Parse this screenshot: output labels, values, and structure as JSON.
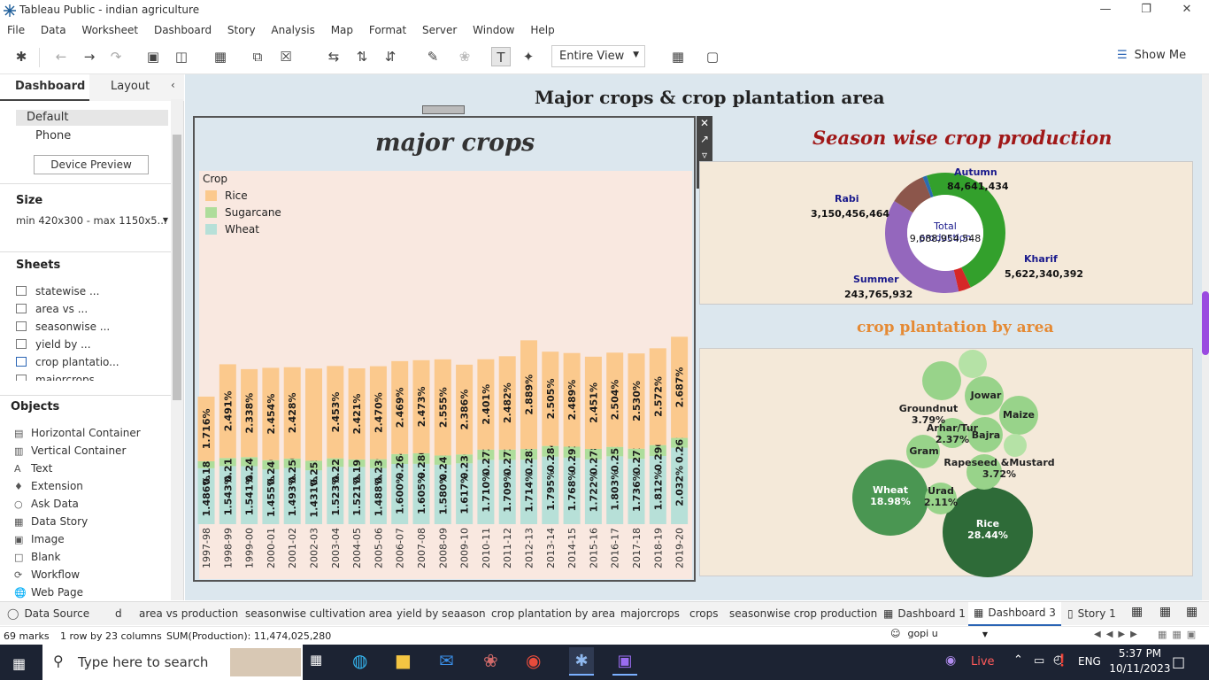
{
  "app": {
    "title": "Tableau Public - indian agriculture",
    "menu": [
      "File",
      "Data",
      "Worksheet",
      "Dashboard",
      "Story",
      "Analysis",
      "Map",
      "Format",
      "Server",
      "Window",
      "Help"
    ],
    "view_mode": "Entire View",
    "show_me": "Show Me"
  },
  "left_panel": {
    "tabs": [
      "Dashboard",
      "Layout"
    ],
    "devices": [
      "Default",
      "Phone"
    ],
    "device_preview": "Device Preview",
    "size_label": "Size",
    "size_value": "min 420x300 - max 1150x5...",
    "sheets_label": "Sheets",
    "sheets": [
      "statewise ...",
      "area vs ...",
      "seasonwise ...",
      "yield by ...",
      "crop plantatio...",
      "majorcrops"
    ],
    "objects_label": "Objects",
    "objects": [
      {
        "icon": "horizontal-container-icon",
        "label": "Horizontal Container"
      },
      {
        "icon": "vertical-container-icon",
        "label": "Vertical Container"
      },
      {
        "icon": "text-icon",
        "label": "Text"
      },
      {
        "icon": "extension-icon",
        "label": "Extension"
      },
      {
        "icon": "ask-data-icon",
        "label": "Ask Data"
      },
      {
        "icon": "data-story-icon",
        "label": "Data Story"
      },
      {
        "icon": "image-icon",
        "label": "Image"
      },
      {
        "icon": "blank-icon",
        "label": "Blank"
      },
      {
        "icon": "workflow-icon",
        "label": "Workflow"
      },
      {
        "icon": "web-page-icon",
        "label": "Web Page"
      }
    ]
  },
  "dashboard": {
    "title": "Major crops & crop plantation area"
  },
  "chart_data": [
    {
      "type": "bar",
      "title": "major crops",
      "legend_title": "Crop",
      "colors": {
        "Rice": "#fbc98d",
        "Sugarcane": "#aedd9b",
        "Wheat": "#b7e0d8"
      },
      "categories": [
        "1997-98",
        "1998-99",
        "1999-00",
        "2000-01",
        "2001-02",
        "2002-03",
        "2003-04",
        "2004-05",
        "2005-06",
        "2006-07",
        "2007-08",
        "2008-09",
        "2009-10",
        "2010-11",
        "2011-12",
        "2012-13",
        "2013-14",
        "2014-15",
        "2015-16",
        "2016-17",
        "2017-18",
        "2018-19",
        "2019-20"
      ],
      "series": [
        {
          "name": "Wheat",
          "labels": [
            "1.486%",
            "1.543%",
            "1.541%",
            "1.455%",
            "1.493%",
            "1.431%",
            "1.523%",
            "1.521%",
            "1.488%",
            "1.600%",
            "1.605%",
            "1.580%",
            "1.617%",
            "1.710%",
            "1.709%",
            "1.714%",
            "1.795%",
            "1.768%",
            "1.722%",
            "1.803%",
            "1.736%",
            "1.812%",
            "2.032%"
          ],
          "values": [
            1.486,
            1.543,
            1.541,
            1.455,
            1.493,
            1.431,
            1.523,
            1.521,
            1.488,
            1.6,
            1.605,
            1.58,
            1.617,
            1.71,
            1.709,
            1.714,
            1.795,
            1.768,
            1.722,
            1.803,
            1.736,
            1.812,
            2.032
          ]
        },
        {
          "name": "Sugarcane",
          "labels": [
            "0.188%",
            "0.215%",
            "0.241%",
            "0.246%",
            "0.250%",
            "0.255%",
            "0.227%",
            "0.199%",
            "0.239%",
            "0.264%",
            "0.280%",
            "0.245%",
            "0.236%",
            "0.272%",
            "0.272%",
            "0.283%",
            "0.284%",
            "0.291%",
            "0.278%",
            "0.251%",
            "0.271%",
            "0.290%",
            "0.261%"
          ],
          "values": [
            0.188,
            0.215,
            0.241,
            0.246,
            0.25,
            0.255,
            0.227,
            0.199,
            0.239,
            0.264,
            0.28,
            0.245,
            0.236,
            0.272,
            0.272,
            0.283,
            0.284,
            0.291,
            0.278,
            0.251,
            0.271,
            0.29,
            0.261
          ]
        },
        {
          "name": "Rice",
          "labels": [
            "1.716%",
            "2.491%",
            "2.338%",
            "2.454%",
            "2.428%",
            "",
            "2.453%",
            "2.421%",
            "2.470%",
            "2.469%",
            "2.473%",
            "2.555%",
            "2.386%",
            "2.401%",
            "2.482%",
            "2.889%",
            "2.505%",
            "2.489%",
            "2.451%",
            "2.504%",
            "2.530%",
            "2.572%",
            "2.687%"
          ],
          "values": [
            1.716,
            2.491,
            2.338,
            2.454,
            2.428,
            2.45,
            2.453,
            2.421,
            2.47,
            2.469,
            2.473,
            2.555,
            2.386,
            2.401,
            2.482,
            2.889,
            2.505,
            2.489,
            2.451,
            2.504,
            2.53,
            2.572,
            2.687
          ]
        }
      ]
    },
    {
      "type": "pie",
      "title": "Season  wise crop production",
      "center_label": "Total production",
      "center_value": "9,688,954,548",
      "slices": [
        {
          "name": "Kharif",
          "value": "5,622,340,392",
          "color": "#33a02c"
        },
        {
          "name": "Rabi",
          "value": "3,150,456,464",
          "color": "#9467bd"
        },
        {
          "name": "Summer",
          "value": "243,765,932",
          "color": "#d62728"
        },
        {
          "name": "Autumn",
          "value": "84,641,434",
          "color": "#2b6cb0"
        },
        {
          "name": "",
          "value": "",
          "color": "#8c564b"
        }
      ]
    },
    {
      "type": "bubble",
      "title": "crop plantation by area",
      "bubbles": [
        {
          "name": "Rice",
          "pct": "28.44%",
          "color": "#2e6b38"
        },
        {
          "name": "Wheat",
          "pct": "18.98%",
          "color": "#4a9652"
        },
        {
          "name": "Urad",
          "pct": "2.11%",
          "color": "#98d38a"
        },
        {
          "name": "Rapeseed &Mustard",
          "pct": "3.72%",
          "color": "#98d38a"
        },
        {
          "name": "Gram",
          "pct": "",
          "color": "#98d38a"
        },
        {
          "name": "Bajra",
          "pct": "",
          "color": "#98d38a"
        },
        {
          "name": "Arhar/Tur",
          "pct": "2.37%",
          "color": "#98d38a"
        },
        {
          "name": "Groundnut",
          "pct": "3.79%",
          "color": "#98d38a"
        },
        {
          "name": "Jowar",
          "pct": "",
          "color": "#98d38a"
        },
        {
          "name": "Maize",
          "pct": "",
          "color": "#98d38a"
        }
      ]
    }
  ],
  "tabs": {
    "data_source": "Data Source",
    "sheets": [
      "d",
      "area vs production",
      "seasonwise cultivation area",
      "yield by seaason",
      "crop plantation by area",
      "majorcrops",
      "crops",
      "seasonwise crop production",
      "Dashboard 1",
      "Dashboard 3",
      "Story 1"
    ]
  },
  "status": {
    "marks": "69 marks",
    "layout": "1 row by 23 columns",
    "sum": "SUM(Production): 11,474,025,280",
    "user": "gopi u"
  },
  "taskbar": {
    "search": "Type here to search",
    "live": "Live",
    "lang": "ENG",
    "time": "5:37 PM",
    "date": "10/11/2023"
  }
}
